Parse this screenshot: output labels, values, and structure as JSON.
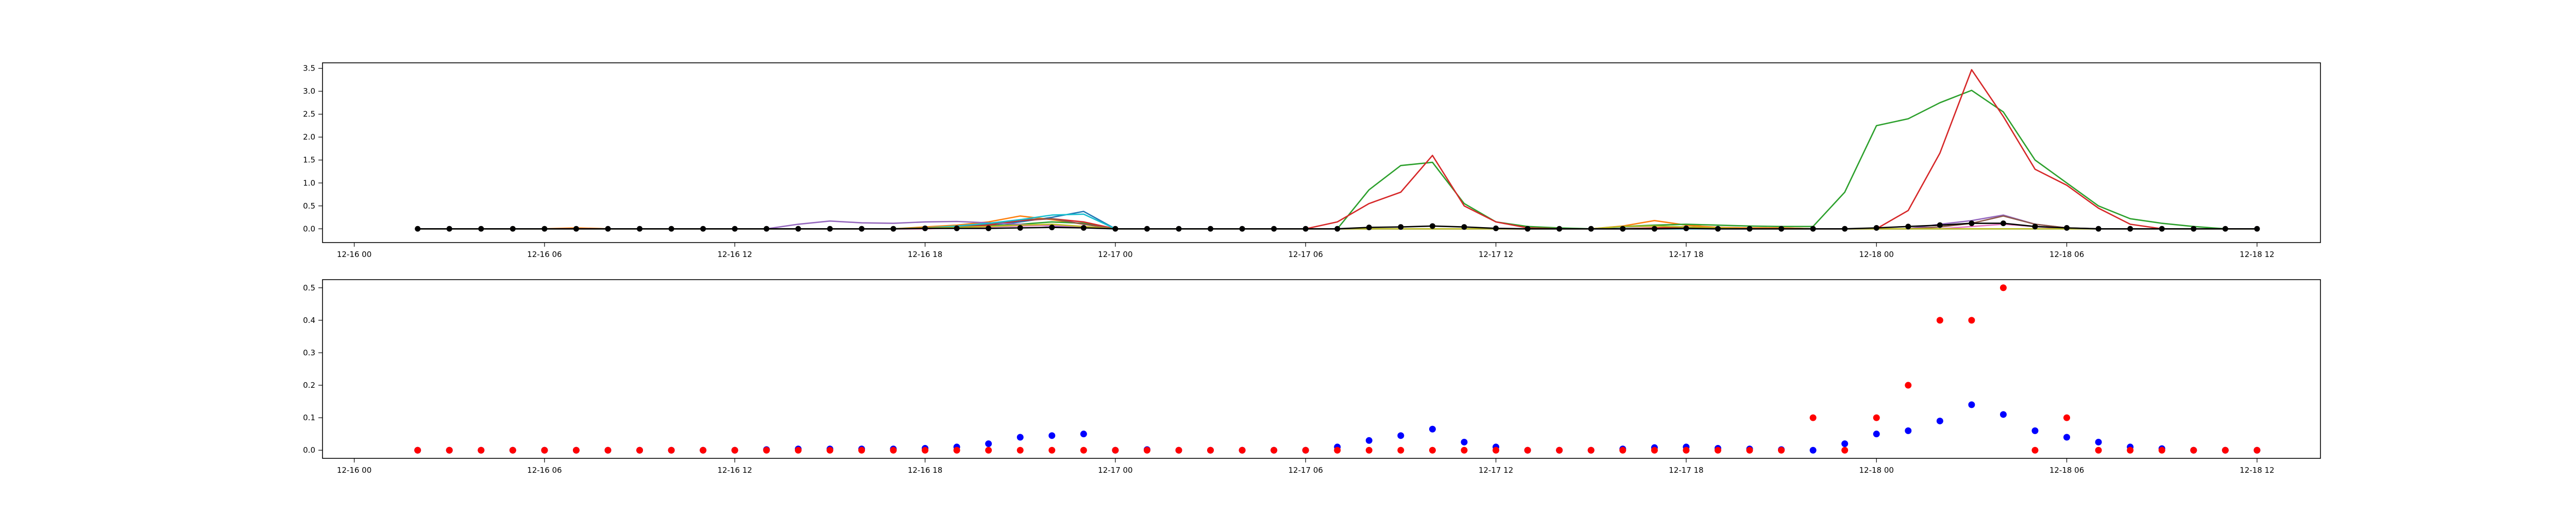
{
  "chart_data": [
    {
      "type": "line",
      "x": [
        "2019-12-16 02:00",
        "2019-12-16 03:00",
        "2019-12-16 04:00",
        "2019-12-16 05:00",
        "2019-12-16 06:00",
        "2019-12-16 07:00",
        "2019-12-16 08:00",
        "2019-12-16 09:00",
        "2019-12-16 10:00",
        "2019-12-16 11:00",
        "2019-12-16 12:00",
        "2019-12-16 13:00",
        "2019-12-16 14:00",
        "2019-12-16 15:00",
        "2019-12-16 16:00",
        "2019-12-16 17:00",
        "2019-12-16 18:00",
        "2019-12-16 19:00",
        "2019-12-16 20:00",
        "2019-12-16 21:00",
        "2019-12-16 22:00",
        "2019-12-16 23:00",
        "2019-12-17 00:00",
        "2019-12-17 01:00",
        "2019-12-17 02:00",
        "2019-12-17 03:00",
        "2019-12-17 04:00",
        "2019-12-17 05:00",
        "2019-12-17 06:00",
        "2019-12-17 07:00",
        "2019-12-17 08:00",
        "2019-12-17 09:00",
        "2019-12-17 10:00",
        "2019-12-17 11:00",
        "2019-12-17 12:00",
        "2019-12-17 13:00",
        "2019-12-17 14:00",
        "2019-12-17 15:00",
        "2019-12-17 16:00",
        "2019-12-17 17:00",
        "2019-12-17 18:00",
        "2019-12-17 19:00",
        "2019-12-17 20:00",
        "2019-12-17 21:00",
        "2019-12-17 22:00",
        "2019-12-17 23:00",
        "2019-12-18 00:00",
        "2019-12-18 01:00",
        "2019-12-18 02:00",
        "2019-12-18 03:00",
        "2019-12-18 04:00",
        "2019-12-18 05:00",
        "2019-12-18 06:00",
        "2019-12-18 07:00",
        "2019-12-18 08:00",
        "2019-12-18 09:00",
        "2019-12-18 10:00",
        "2019-12-18 11:00",
        "2019-12-18 12:00"
      ],
      "xlim": [
        "2019-12-15 23:00",
        "2019-12-18 14:00"
      ],
      "ylim": [
        -0.3,
        3.62
      ],
      "yticks": [
        0.0,
        0.5,
        1.0,
        1.5,
        2.0,
        2.5,
        3.0,
        3.5
      ],
      "ytick_labels": [
        "0.0",
        "0.5",
        "1.0",
        "1.5",
        "2.0",
        "2.5",
        "3.0",
        "3.5"
      ],
      "xticks": [
        "2019-12-16 00:00",
        "2019-12-16 06:00",
        "2019-12-16 12:00",
        "2019-12-16 18:00",
        "2019-12-17 00:00",
        "2019-12-17 06:00",
        "2019-12-17 12:00",
        "2019-12-17 18:00",
        "2019-12-18 00:00",
        "2019-12-18 06:00",
        "2019-12-18 12:00"
      ],
      "xtick_labels": [
        "12-16 00",
        "12-16 06",
        "12-16 12",
        "12-16 18",
        "12-17 00",
        "12-17 06",
        "12-17 12",
        "12-17 18",
        "12-18 00",
        "12-18 06",
        "12-18 12"
      ],
      "grid": false,
      "title": "",
      "xlabel": "",
      "ylabel": "",
      "series": [
        {
          "color": "#1f77b4",
          "values": [
            0,
            0,
            0,
            0,
            0,
            0,
            0,
            0,
            0,
            0,
            0,
            0,
            0,
            0,
            0,
            0,
            0.03,
            0.05,
            0.08,
            0.15,
            0.25,
            0.38,
            0,
            0,
            0,
            0,
            0,
            0,
            0,
            0,
            0,
            0,
            0,
            0,
            0,
            0,
            0,
            0,
            0.04,
            0.06,
            0.04,
            0.03,
            0.02,
            0.02,
            0,
            0,
            0,
            0,
            0,
            0,
            0,
            0,
            0,
            0,
            0,
            0,
            0,
            0,
            0
          ]
        },
        {
          "color": "#ff7f0e",
          "values": [
            0,
            0,
            0,
            0,
            0,
            0.02,
            0,
            0,
            0,
            0,
            0,
            0,
            0,
            0,
            0,
            0,
            0.04,
            0.08,
            0.15,
            0.28,
            0.2,
            0.1,
            0,
            0,
            0,
            0,
            0,
            0,
            0,
            0,
            0,
            0,
            0,
            0,
            0,
            0,
            0,
            0,
            0.06,
            0.18,
            0.08,
            0.03,
            0.02,
            0.02,
            0,
            0,
            0,
            0,
            0,
            0,
            0,
            0,
            0,
            0,
            0,
            0,
            0,
            0,
            0
          ]
        },
        {
          "color": "#2ca02c",
          "values": [
            0,
            0,
            0,
            0,
            0,
            0,
            0,
            0,
            0,
            0,
            0,
            0,
            0,
            0,
            0,
            0,
            0.02,
            0.04,
            0.06,
            0.1,
            0.15,
            0.12,
            0,
            0,
            0,
            0,
            0,
            0,
            0,
            0,
            0.85,
            1.38,
            1.45,
            0.55,
            0.15,
            0.05,
            0.02,
            0,
            0.05,
            0.08,
            0.1,
            0.08,
            0.06,
            0.05,
            0.05,
            0.8,
            2.25,
            2.4,
            2.75,
            3.02,
            2.55,
            1.5,
            1.0,
            0.5,
            0.22,
            0.12,
            0.05,
            0,
            0
          ]
        },
        {
          "color": "#d62728",
          "values": [
            0,
            0,
            0,
            0,
            0,
            0,
            0,
            0,
            0,
            0,
            0,
            0,
            0,
            0,
            0,
            0,
            0,
            0.03,
            0.08,
            0.18,
            0.22,
            0.15,
            0,
            0,
            0,
            0,
            0,
            0,
            0,
            0.15,
            0.55,
            0.8,
            1.6,
            0.5,
            0.15,
            0.02,
            0,
            0,
            0,
            0.02,
            0.04,
            0.02,
            0,
            0,
            0,
            0,
            0,
            0.4,
            1.65,
            3.47,
            2.45,
            1.3,
            0.95,
            0.45,
            0.1,
            0,
            0,
            0,
            0
          ]
        },
        {
          "color": "#9467bd",
          "values": [
            0,
            0,
            0,
            0,
            0,
            0,
            0,
            0,
            0,
            0,
            0,
            0,
            0.1,
            0.17,
            0.13,
            0.12,
            0.15,
            0.16,
            0.13,
            0.1,
            0.06,
            0.03,
            0,
            0,
            0,
            0,
            0,
            0,
            0,
            0,
            0,
            0,
            0,
            0,
            0,
            0,
            0,
            0,
            0,
            0,
            0,
            0,
            0,
            0,
            0,
            0,
            0,
            0,
            0.1,
            0.18,
            0.3,
            0.1,
            0.02,
            0,
            0,
            0,
            0,
            0,
            0
          ]
        },
        {
          "color": "#8c564b",
          "values": [
            0,
            0,
            0,
            0,
            0,
            0,
            0,
            0,
            0,
            0,
            0,
            0,
            0,
            0,
            0,
            0,
            0.02,
            0.05,
            0.1,
            0.2,
            0.22,
            0.1,
            0,
            0,
            0,
            0,
            0,
            0,
            0,
            0,
            0,
            0,
            0,
            0,
            0,
            0,
            0,
            0,
            0,
            0,
            0,
            0,
            0,
            0,
            0,
            0,
            0,
            0,
            0.04,
            0.12,
            0.28,
            0.1,
            0.02,
            0,
            0,
            0,
            0,
            0,
            0
          ]
        },
        {
          "color": "#e377c2",
          "values": [
            0,
            0,
            0,
            0,
            0,
            0,
            0,
            0,
            0,
            0,
            0,
            0,
            0,
            0,
            0,
            0,
            0,
            0.02,
            0.04,
            0.06,
            0.08,
            0.05,
            0,
            0,
            0,
            0,
            0,
            0,
            0,
            0,
            0,
            0,
            0,
            0,
            0,
            0,
            0,
            0,
            0,
            0,
            0,
            0,
            0,
            0,
            0,
            0,
            0,
            0,
            0,
            0.05,
            0.1,
            0.05,
            0,
            0,
            0,
            0,
            0,
            0,
            0
          ]
        },
        {
          "color": "#17becf",
          "values": [
            0,
            0,
            0,
            0,
            0,
            0,
            0,
            0,
            0,
            0,
            0,
            0,
            0,
            0,
            0,
            0,
            0.02,
            0.06,
            0.12,
            0.2,
            0.3,
            0.32,
            0,
            0,
            0,
            0,
            0,
            0,
            0,
            0,
            0,
            0,
            0,
            0,
            0,
            0,
            0,
            0,
            0,
            0,
            0,
            0,
            0,
            0,
            0,
            0,
            0,
            0,
            0,
            0,
            0,
            0,
            0,
            0,
            0,
            0,
            0,
            0,
            0
          ]
        },
        {
          "color": "#bcbd22",
          "values": [
            0,
            0,
            0,
            0,
            0,
            0,
            0,
            0,
            0,
            0,
            0,
            0,
            0,
            0,
            0,
            0,
            0.02,
            0.03,
            0.05,
            0.08,
            0.1,
            0.05,
            0,
            0,
            0,
            0,
            0,
            0,
            0,
            0,
            0,
            0,
            0,
            0,
            0,
            0,
            0,
            0,
            0.05,
            0.06,
            0.04,
            0.02,
            0,
            0,
            0,
            0,
            0,
            0,
            0,
            0,
            0,
            0,
            0,
            0,
            0,
            0,
            0,
            0,
            0
          ]
        },
        {
          "color": "#000000",
          "marker": "dot",
          "values": [
            0,
            0,
            0,
            0,
            0,
            0,
            0,
            0,
            0,
            0,
            0,
            0,
            0,
            0,
            0,
            0,
            0.01,
            0.01,
            0.01,
            0.02,
            0.03,
            0.02,
            0,
            0,
            0,
            0,
            0,
            0,
            0,
            0,
            0.03,
            0.04,
            0.06,
            0.04,
            0.01,
            0,
            0,
            0,
            0,
            0,
            0.01,
            0,
            0,
            0,
            0,
            0,
            0.02,
            0.05,
            0.08,
            0.12,
            0.12,
            0.05,
            0.02,
            0,
            0,
            0,
            0,
            0,
            0
          ]
        }
      ]
    },
    {
      "type": "scatter",
      "x": [
        "2019-12-16 02:00",
        "2019-12-16 03:00",
        "2019-12-16 04:00",
        "2019-12-16 05:00",
        "2019-12-16 06:00",
        "2019-12-16 07:00",
        "2019-12-16 08:00",
        "2019-12-16 09:00",
        "2019-12-16 10:00",
        "2019-12-16 11:00",
        "2019-12-16 12:00",
        "2019-12-16 13:00",
        "2019-12-16 14:00",
        "2019-12-16 15:00",
        "2019-12-16 16:00",
        "2019-12-16 17:00",
        "2019-12-16 18:00",
        "2019-12-16 19:00",
        "2019-12-16 20:00",
        "2019-12-16 21:00",
        "2019-12-16 22:00",
        "2019-12-16 23:00",
        "2019-12-17 00:00",
        "2019-12-17 01:00",
        "2019-12-17 02:00",
        "2019-12-17 03:00",
        "2019-12-17 04:00",
        "2019-12-17 05:00",
        "2019-12-17 06:00",
        "2019-12-17 07:00",
        "2019-12-17 08:00",
        "2019-12-17 09:00",
        "2019-12-17 10:00",
        "2019-12-17 11:00",
        "2019-12-17 12:00",
        "2019-12-17 13:00",
        "2019-12-17 14:00",
        "2019-12-17 15:00",
        "2019-12-17 16:00",
        "2019-12-17 17:00",
        "2019-12-17 18:00",
        "2019-12-17 19:00",
        "2019-12-17 20:00",
        "2019-12-17 21:00",
        "2019-12-17 22:00",
        "2019-12-17 23:00",
        "2019-12-18 00:00",
        "2019-12-18 01:00",
        "2019-12-18 02:00",
        "2019-12-18 03:00",
        "2019-12-18 04:00",
        "2019-12-18 05:00",
        "2019-12-18 06:00",
        "2019-12-18 07:00",
        "2019-12-18 08:00",
        "2019-12-18 09:00",
        "2019-12-18 10:00",
        "2019-12-18 11:00",
        "2019-12-18 12:00"
      ],
      "xlim": [
        "2019-12-15 23:00",
        "2019-12-18 14:00"
      ],
      "ylim": [
        -0.025,
        0.525
      ],
      "yticks": [
        0.0,
        0.1,
        0.2,
        0.3,
        0.4,
        0.5
      ],
      "ytick_labels": [
        "0.0",
        "0.1",
        "0.2",
        "0.3",
        "0.4",
        "0.5"
      ],
      "xticks": [
        "2019-12-16 00:00",
        "2019-12-16 06:00",
        "2019-12-16 12:00",
        "2019-12-16 18:00",
        "2019-12-17 00:00",
        "2019-12-17 06:00",
        "2019-12-17 12:00",
        "2019-12-17 18:00",
        "2019-12-18 00:00",
        "2019-12-18 06:00",
        "2019-12-18 12:00"
      ],
      "xtick_labels": [
        "12-16 00",
        "12-16 06",
        "12-16 12",
        "12-16 18",
        "12-17 00",
        "12-17 06",
        "12-17 12",
        "12-17 18",
        "12-18 00",
        "12-18 06",
        "12-18 12"
      ],
      "grid": false,
      "title": "",
      "xlabel": "",
      "ylabel": "",
      "series": [
        {
          "color": "#0000ff",
          "values": [
            0,
            0,
            0,
            0,
            0,
            0,
            0,
            0,
            0,
            0,
            0,
            0.002,
            0.004,
            0.004,
            0.004,
            0.004,
            0.006,
            0.01,
            0.02,
            0.04,
            0.045,
            0.05,
            0,
            0.002,
            0,
            0,
            0,
            0,
            0,
            0.01,
            0.03,
            0.045,
            0.065,
            0.025,
            0.01,
            0,
            0,
            0,
            0.004,
            0.008,
            0.01,
            0.006,
            0.004,
            0.002,
            0,
            0.02,
            0.05,
            0.06,
            0.09,
            0.14,
            0.11,
            0.06,
            0.04,
            0.025,
            0.01,
            0.005,
            0,
            0,
            0
          ]
        },
        {
          "color": "#ff0000",
          "values": [
            0,
            0,
            0,
            0,
            0,
            0,
            0,
            0,
            0,
            0,
            0,
            0,
            0,
            0,
            0,
            0,
            0,
            0,
            0,
            0,
            0,
            0,
            0,
            0,
            0,
            0,
            0,
            0,
            0,
            0,
            0,
            0,
            0,
            0,
            0,
            0,
            0,
            0,
            0,
            0,
            0,
            0,
            0,
            0,
            0.1,
            0,
            0.1,
            0.2,
            0.4,
            0.4,
            0.5,
            0,
            0.1,
            0,
            0,
            0,
            0,
            0,
            0
          ]
        }
      ]
    }
  ]
}
